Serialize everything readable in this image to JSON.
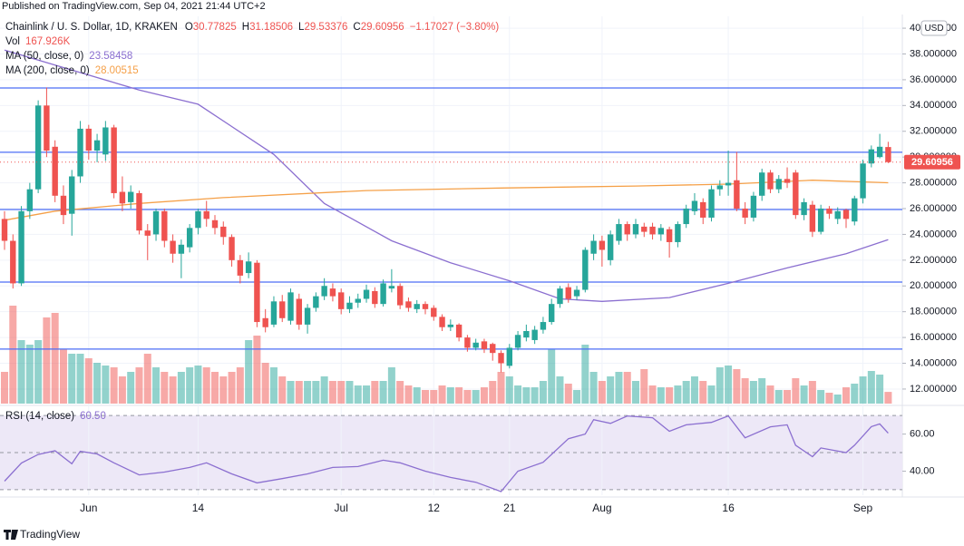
{
  "chart_data": {
    "type": "candlestick",
    "published": "Published on TradingView.com, Sep 04, 2021 21:44 UTC+2",
    "title": "Chainlink / U. S. Dollar, 1D, KRAKEN",
    "ohlc_header": [
      {
        "label": "O",
        "value": "30.77825"
      },
      {
        "label": "H",
        "value": "31.18506"
      },
      {
        "label": "L",
        "value": "29.53376"
      },
      {
        "label": "C",
        "value": "29.60956"
      }
    ],
    "change": "−1.17027 (−3.80%)",
    "currency": "USD",
    "brand": "TradingView",
    "up_color": "#26a69a",
    "down_color": "#ef5350",
    "categories": [
      null,
      null,
      null,
      null,
      null,
      null,
      null,
      null,
      null,
      null,
      "Jun",
      null,
      null,
      null,
      null,
      null,
      null,
      null,
      null,
      null,
      null,
      null,
      null,
      "14",
      null,
      null,
      null,
      null,
      null,
      null,
      null,
      null,
      null,
      null,
      null,
      null,
      null,
      null,
      null,
      null,
      "Jul",
      null,
      null,
      null,
      null,
      null,
      null,
      null,
      null,
      null,
      null,
      "12",
      null,
      null,
      null,
      null,
      null,
      null,
      null,
      null,
      "21",
      null,
      null,
      null,
      null,
      null,
      null,
      null,
      null,
      null,
      null,
      "Aug",
      null,
      null,
      null,
      null,
      null,
      null,
      null,
      null,
      null,
      null,
      null,
      null,
      null,
      null,
      "16",
      null,
      null,
      null,
      null,
      null,
      null,
      null,
      null,
      null,
      null,
      null,
      null,
      null,
      null,
      null,
      "Sep",
      null,
      null,
      null
    ],
    "open": [
      25.2,
      23.5,
      20.2,
      25.8,
      27.5,
      34.0,
      30.8,
      27.0,
      25.6,
      28.5,
      32.2,
      30.5,
      30.2,
      32.3,
      27.3,
      26.5,
      27.2,
      24.3,
      24.0,
      25.8,
      23.5,
      22.5,
      23.0,
      24.5,
      25.8,
      25.1,
      24.6,
      23.8,
      22.0,
      21.0,
      21.8,
      17.5,
      17.0,
      18.8,
      17.3,
      19.0,
      17.0,
      18.3,
      19.2,
      19.8,
      19.5,
      18.2,
      18.7,
      19.0,
      19.6,
      18.6,
      19.8,
      20.0,
      18.8,
      18.2,
      18.6,
      18.3,
      17.6,
      16.8,
      17.0,
      16.0,
      15.2,
      15.7,
      15.5,
      14.8,
      13.8,
      15.2,
      16.0,
      15.8,
      16.6,
      17.2,
      18.6,
      19.9,
      19.2,
      19.7,
      22.5,
      23.5,
      22.0,
      23.5,
      24.8,
      24.0,
      24.6,
      24.6,
      24.0,
      24.4,
      23.4,
      24.8,
      25.8,
      26.5,
      25.3,
      27.5,
      27.8,
      28.2,
      26.0,
      25.3,
      27.0,
      28.8,
      27.5,
      28.3,
      28.8,
      25.5,
      26.3,
      24.2,
      26.0,
      25.2,
      25.9,
      25.0,
      26.8,
      29.5,
      30.0,
      30.77825
    ],
    "high": [
      25.8,
      24.0,
      26.2,
      28.0,
      34.4,
      35.4,
      31.3,
      27.8,
      29.0,
      32.8,
      32.5,
      31.8,
      32.8,
      32.5,
      28.5,
      27.8,
      27.4,
      24.8,
      26.0,
      26.0,
      24.0,
      23.6,
      24.8,
      26.0,
      26.6,
      25.5,
      25.0,
      24.0,
      22.4,
      22.6,
      22.0,
      18.2,
      19.2,
      19.3,
      19.8,
      19.4,
      18.6,
      19.5,
      20.6,
      20.2,
      19.8,
      19.2,
      19.4,
      20.1,
      19.9,
      20.5,
      21.3,
      20.2,
      19.1,
      18.9,
      18.8,
      18.5,
      17.8,
      17.4,
      17.1,
      16.2,
      15.9,
      15.9,
      15.6,
      15.0,
      15.5,
      16.5,
      17.0,
      16.9,
      17.6,
      19.0,
      20.0,
      20.2,
      20.0,
      23.0,
      24.0,
      23.9,
      24.3,
      25.2,
      25.0,
      25.2,
      24.9,
      24.9,
      24.8,
      24.6,
      25.0,
      26.3,
      27.2,
      26.8,
      27.8,
      28.2,
      30.5,
      30.4,
      26.5,
      27.3,
      29.1,
      29.0,
      28.6,
      29.2,
      29.0,
      26.8,
      26.6,
      26.3,
      26.2,
      26.1,
      26.0,
      27.0,
      29.8,
      30.9,
      31.8,
      31.18506
    ],
    "low": [
      22.8,
      19.8,
      20.0,
      25.2,
      27.2,
      30.0,
      26.5,
      24.8,
      23.9,
      28.0,
      29.8,
      29.6,
      29.7,
      26.8,
      25.8,
      26.0,
      24.0,
      22.0,
      23.5,
      23.0,
      21.8,
      20.6,
      22.6,
      24.0,
      24.6,
      24.0,
      23.2,
      21.5,
      20.2,
      20.6,
      16.8,
      16.4,
      16.8,
      17.2,
      17.0,
      16.6,
      16.3,
      18.0,
      18.9,
      18.8,
      17.8,
      17.9,
      18.3,
      18.7,
      18.3,
      18.4,
      19.5,
      18.2,
      18.0,
      17.9,
      17.8,
      17.3,
      16.5,
      16.5,
      15.7,
      14.9,
      15.0,
      14.8,
      14.2,
      13.3,
      13.6,
      15.0,
      15.7,
      15.5,
      16.3,
      17.0,
      18.3,
      18.7,
      18.9,
      19.5,
      22.0,
      21.5,
      21.6,
      23.2,
      23.5,
      23.7,
      23.8,
      23.6,
      23.5,
      22.2,
      23.0,
      24.5,
      25.5,
      24.8,
      25.0,
      27.0,
      27.0,
      25.8,
      24.8,
      25.0,
      26.6,
      27.2,
      27.2,
      27.6,
      25.2,
      25.1,
      23.8,
      24.0,
      25.2,
      24.8,
      24.5,
      24.7,
      26.4,
      29.2,
      29.9,
      29.53376
    ],
    "close": [
      23.5,
      20.2,
      25.8,
      27.5,
      34.0,
      30.5,
      27.0,
      25.5,
      28.5,
      32.2,
      30.5,
      31.3,
      32.3,
      27.2,
      26.4,
      27.3,
      24.3,
      23.9,
      25.8,
      23.5,
      22.5,
      23.2,
      24.5,
      25.8,
      25.2,
      24.5,
      23.8,
      22.0,
      20.8,
      21.9,
      17.2,
      16.8,
      18.8,
      17.5,
      19.5,
      17.0,
      18.3,
      19.2,
      20.0,
      19.2,
      18.2,
      18.7,
      19.0,
      19.7,
      18.6,
      20.2,
      20.0,
      18.5,
      18.3,
      18.6,
      18.2,
      17.6,
      16.8,
      17.0,
      16.0,
      15.2,
      15.6,
      15.1,
      14.8,
      14.0,
      15.2,
      16.2,
      16.5,
      16.6,
      17.2,
      18.6,
      19.8,
      19.0,
      19.7,
      22.8,
      23.5,
      22.8,
      24.0,
      24.8,
      24.0,
      24.8,
      24.2,
      24.0,
      24.5,
      23.4,
      24.8,
      26.0,
      26.6,
      25.3,
      27.5,
      27.8,
      28.0,
      26.0,
      25.3,
      27.0,
      28.8,
      27.5,
      28.3,
      28.0,
      25.5,
      26.5,
      24.2,
      26.0,
      25.6,
      25.8,
      25.2,
      26.8,
      29.5,
      30.6,
      30.8,
      29.60956
    ],
    "ylim": [
      10.87,
      40.92
    ],
    "yticks": [
      {
        "value": 12,
        "label": "12.000000"
      },
      {
        "value": 14,
        "label": "14.000000"
      },
      {
        "value": 16,
        "label": "16.000000"
      },
      {
        "value": 18,
        "label": "18.000000"
      },
      {
        "value": 20,
        "label": "20.000000"
      },
      {
        "value": 22,
        "label": "22.000000"
      },
      {
        "value": 24,
        "label": "24.000000"
      },
      {
        "value": 26,
        "label": "26.000000"
      },
      {
        "value": 28,
        "label": "28.000000"
      },
      {
        "value": 30,
        "label": "30.000000"
      },
      {
        "value": 32,
        "label": "32.000000"
      },
      {
        "value": 34,
        "label": "34.000000"
      },
      {
        "value": 36,
        "label": "36.000000"
      },
      {
        "value": 38,
        "label": "38.000000"
      },
      {
        "value": 40,
        "label": "40.000000"
      }
    ],
    "grid": true,
    "last_price_label": "29.60956",
    "levels": [
      35.36,
      30.37,
      25.93,
      20.3,
      15.1
    ],
    "level_color": "#4c6ef5",
    "volume": {
      "name": "Vol",
      "value_label": "167.926K",
      "values": [
        455,
        1404,
        910,
        845,
        910,
        1235,
        1300,
        780,
        715,
        715,
        650,
        585,
        546,
        520,
        390,
        455,
        520,
        715,
        520,
        455,
        390,
        455,
        520,
        546,
        520,
        455,
        390,
        455,
        520,
        910,
        975,
        585,
        520,
        390,
        325,
        325,
        325,
        325,
        390,
        325,
        325,
        325,
        260,
        260,
        325,
        325,
        520,
        325,
        260,
        234,
        195,
        195,
        260,
        234,
        234,
        195,
        195,
        234,
        325,
        455,
        390,
        260,
        234,
        234,
        325,
        780,
        390,
        286,
        195,
        845,
        455,
        325,
        390,
        455,
        455,
        325,
        494,
        260,
        234,
        234,
        260,
        325,
        390,
        325,
        260,
        520,
        546,
        494,
        364,
        325,
        364,
        260,
        195,
        195,
        364,
        260,
        325,
        195,
        156,
        130,
        234,
        286,
        390,
        468,
        416,
        167.926
      ]
    },
    "series": [
      {
        "name": "MA (50, close, 0)",
        "value_label": "23.58458",
        "color": "#8b6fd0",
        "x": [
          0,
          16,
          23,
          32,
          38,
          46,
          53,
          60,
          66,
          71,
          79,
          86,
          93,
          100,
          105
        ],
        "values": [
          38.3,
          35.2,
          34.1,
          30.2,
          26.4,
          23.5,
          21.8,
          20.4,
          19.0,
          18.8,
          19.1,
          20.2,
          21.4,
          22.5,
          23.58458
        ]
      },
      {
        "name": "MA (200, close, 0)",
        "value_label": "28.00515",
        "color": "#f5a048",
        "x": [
          0,
          6,
          16,
          26,
          43,
          59,
          75,
          86,
          96,
          105
        ],
        "values": [
          25.1,
          25.8,
          26.4,
          26.85,
          27.4,
          27.6,
          27.75,
          27.9,
          28.2,
          28.00515
        ]
      }
    ],
    "rsi": {
      "name": "RSI (14, close)",
      "value_label": "60.50",
      "color": "#8b6fd0",
      "x": [
        0,
        2,
        4,
        6,
        8,
        9,
        11,
        13,
        16,
        19,
        22,
        24,
        27,
        30,
        33,
        36,
        39,
        42,
        45,
        47,
        50,
        53,
        56,
        59,
        61,
        64,
        67,
        69,
        70,
        72,
        74,
        77,
        79,
        81,
        84,
        86,
        88,
        91,
        93,
        94,
        96,
        97,
        100,
        101,
        103,
        104,
        105
      ],
      "values": [
        34.6,
        44.4,
        49,
        51,
        44,
        50.7,
        49.3,
        44.5,
        38,
        39.5,
        42,
        44.5,
        38.5,
        33.7,
        36,
        38.5,
        42,
        42.5,
        45.9,
        44.5,
        40,
        36.6,
        34,
        29,
        40,
        44.8,
        57.5,
        60,
        67.8,
        65.8,
        69.8,
        68.8,
        61.5,
        65,
        66.3,
        69.8,
        58,
        63.9,
        65,
        54,
        47.8,
        52.5,
        50,
        54,
        64,
        65.5,
        60.5
      ],
      "ylim": [
        28,
        74
      ],
      "yticks": [
        {
          "value": 40,
          "label": "40.00"
        },
        {
          "value": 60,
          "label": "60.00"
        }
      ],
      "bands": [
        70,
        50,
        30
      ]
    }
  }
}
